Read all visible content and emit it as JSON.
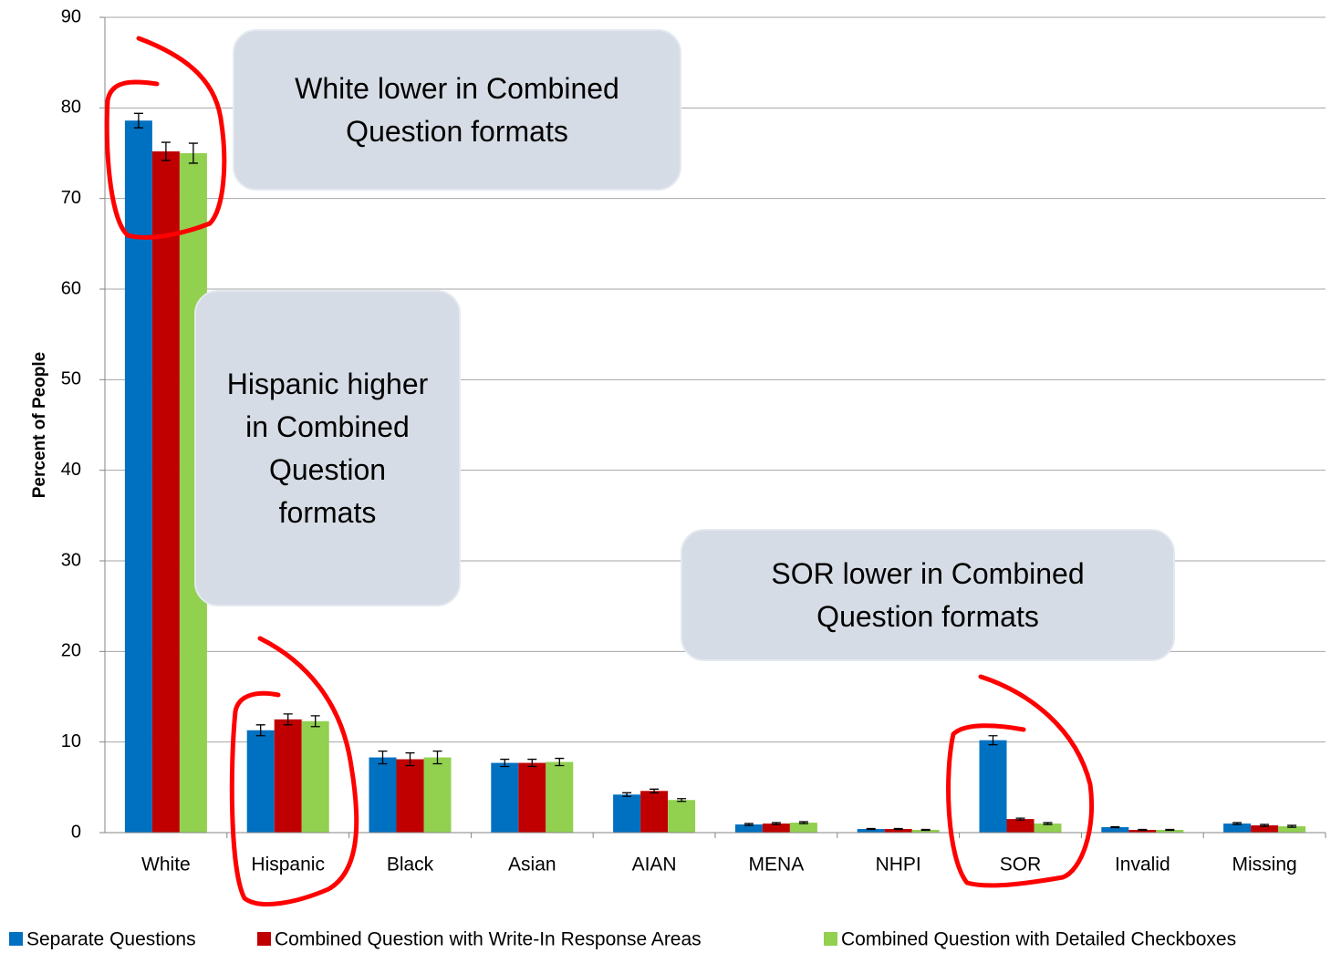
{
  "chart_data": {
    "type": "bar",
    "y_label": "Percent of People",
    "categories": [
      "White",
      "Hispanic",
      "Black",
      "Asian",
      "AIAN",
      "MENA",
      "NHPI",
      "SOR",
      "Invalid",
      "Missing"
    ],
    "series": [
      {
        "name": "Separate Questions",
        "color": "#0070c0",
        "values": [
          78.6,
          11.3,
          8.3,
          7.7,
          4.2,
          0.9,
          0.4,
          10.2,
          0.6,
          1.0
        ],
        "errors": [
          0.8,
          0.6,
          0.7,
          0.4,
          0.2,
          0.1,
          0.05,
          0.5,
          0.05,
          0.1
        ]
      },
      {
        "name": "Combined Question with Write-In Response Areas",
        "color": "#c00000",
        "values": [
          75.2,
          12.5,
          8.1,
          7.7,
          4.6,
          1.0,
          0.4,
          1.5,
          0.3,
          0.8
        ],
        "errors": [
          1.0,
          0.6,
          0.7,
          0.4,
          0.2,
          0.1,
          0.05,
          0.1,
          0.05,
          0.1
        ]
      },
      {
        "name": "Combined Question with Detailed Checkboxes",
        "color": "#92d050",
        "values": [
          75.0,
          12.3,
          8.3,
          7.8,
          3.6,
          1.1,
          0.3,
          1.0,
          0.3,
          0.7
        ],
        "errors": [
          1.1,
          0.6,
          0.7,
          0.4,
          0.15,
          0.1,
          0.05,
          0.1,
          0.05,
          0.1
        ]
      }
    ],
    "ylim": [
      0,
      90
    ],
    "yticks": [
      0,
      10,
      20,
      30,
      40,
      50,
      60,
      70,
      80,
      90
    ],
    "grid": true,
    "legend": "bottom",
    "annotations": [
      "White lower in Combined Question formats",
      "Hispanic higher in Combined Question formats",
      "SOR lower in Combined Question formats"
    ]
  }
}
